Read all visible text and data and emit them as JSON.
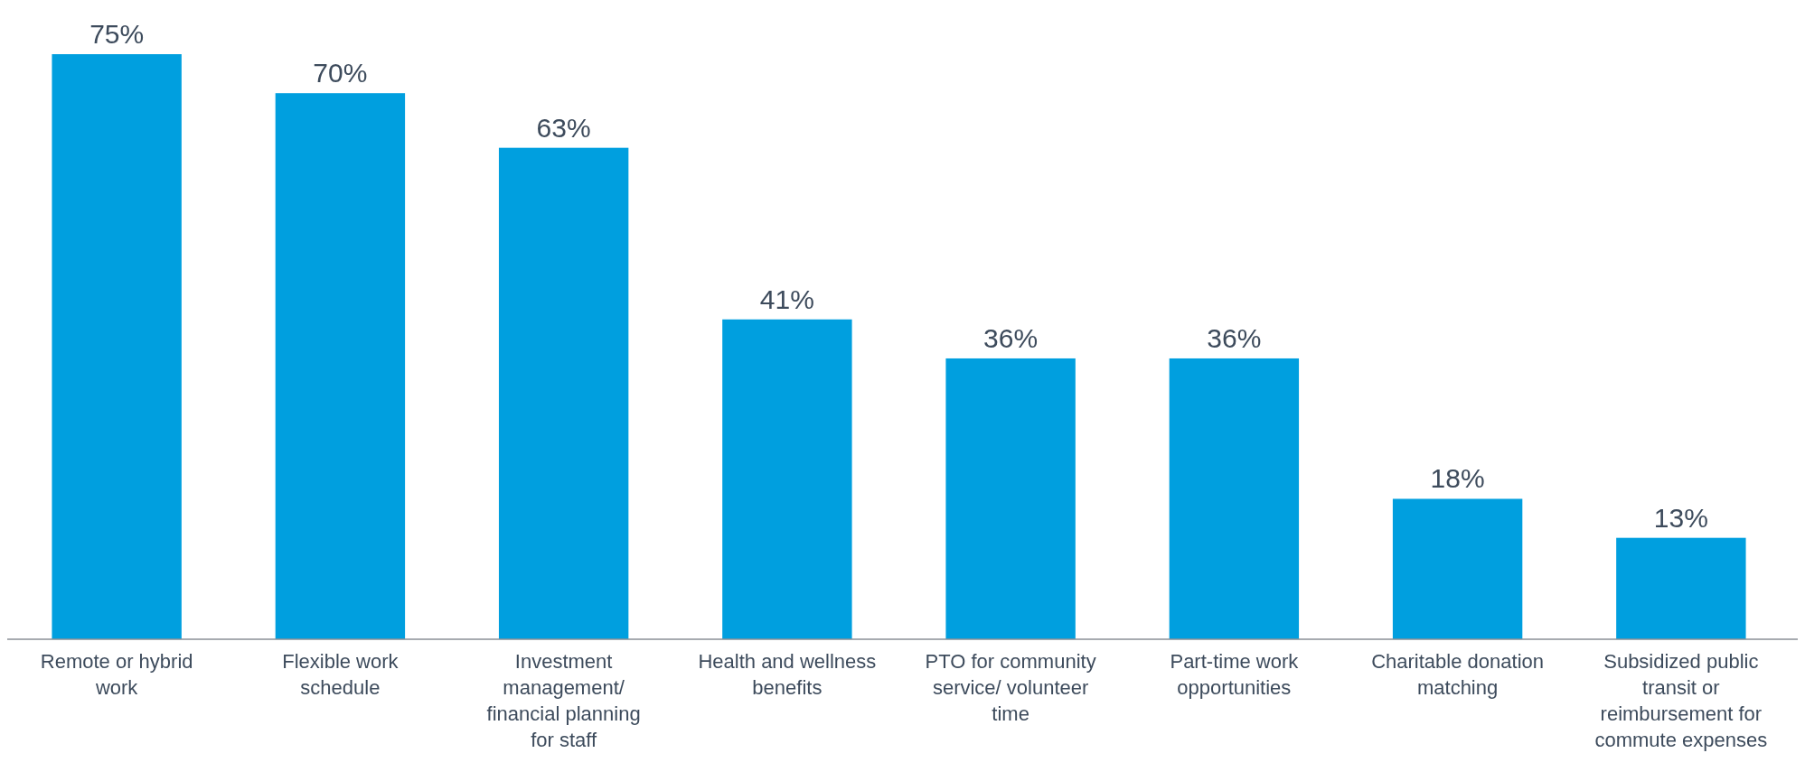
{
  "chart_data": {
    "type": "bar",
    "categories": [
      "Remote or hybrid work",
      "Flexible work schedule",
      "Investment management/ financial planning for staff",
      "Health and wellness benefits",
      "PTO for community service/ volunteer time",
      "Part-time work opportunities",
      "Charitable donation matching",
      "Subsidized public transit or reimbursement for commute expenses"
    ],
    "values": [
      75,
      70,
      63,
      41,
      36,
      36,
      18,
      13
    ],
    "value_labels": [
      "75%",
      "70%",
      "63%",
      "41%",
      "36%",
      "36%",
      "18%",
      "13%"
    ],
    "color": "#009fdf",
    "ylim": [
      0,
      75
    ]
  }
}
